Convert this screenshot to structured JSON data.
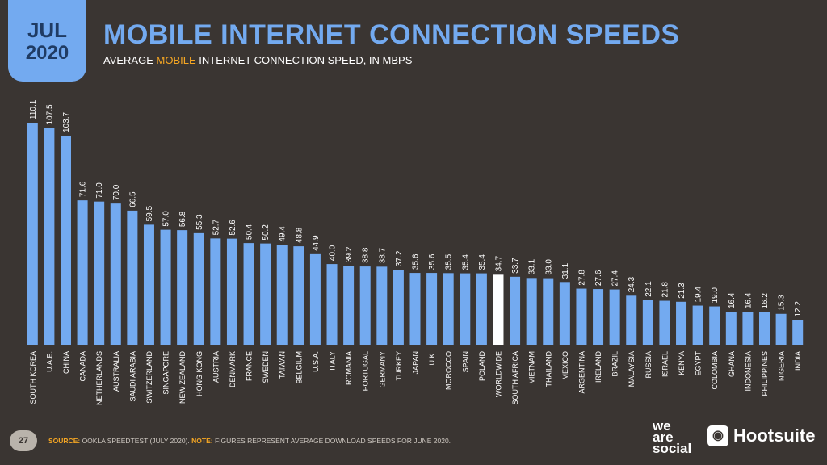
{
  "header": {
    "month": "JUL",
    "year": "2020",
    "title": "MOBILE INTERNET CONNECTION SPEEDS",
    "subtitle_pre": "AVERAGE ",
    "subtitle_hl": "MOBILE",
    "subtitle_post": " INTERNET CONNECTION SPEED, IN MBPS"
  },
  "footer": {
    "page_number": "27",
    "source_label": "SOURCE:",
    "source_text": " OOKLA SPEEDTEST (JULY 2020). ",
    "note_label": "NOTE:",
    "note_text": " FIGURES REPRESENT AVERAGE DOWNLOAD SPEEDS FOR JUNE 2020."
  },
  "logos": {
    "we": "we",
    "are": "are",
    "social": "social",
    "hootsuite": "Hootsuite"
  },
  "colors": {
    "background": "#3a3532",
    "bar": "#73aaf0",
    "highlight_bar": "#ffffff",
    "accent": "#f5a623"
  },
  "chart_data": {
    "type": "bar",
    "title": "MOBILE INTERNET CONNECTION SPEEDS",
    "ylabel": "",
    "xlabel": "",
    "ylim": [
      0,
      110.1
    ],
    "grid": false,
    "highlight": "WORLDWIDE",
    "categories": [
      "SOUTH KOREA",
      "U.A.E.",
      "CHINA",
      "CANADA",
      "NETHERLANDS",
      "AUSTRALIA",
      "SAUDI ARABIA",
      "SWITZERLAND",
      "SINGAPORE",
      "NEW ZEALAND",
      "HONG KONG",
      "AUSTRIA",
      "DENMARK",
      "FRANCE",
      "SWEDEN",
      "TAIWAN",
      "BELGIUM",
      "U.S.A.",
      "ITALY",
      "ROMANIA",
      "PORTUGAL",
      "GERMANY",
      "TURKEY",
      "JAPAN",
      "U.K.",
      "MOROCCO",
      "SPAIN",
      "POLAND",
      "WORLDWIDE",
      "SOUTH AFRICA",
      "VIETNAM",
      "THAILAND",
      "MEXICO",
      "ARGENTINA",
      "IRELAND",
      "BRAZIL",
      "MALAYSIA",
      "RUSSIA",
      "ISRAEL",
      "KENYA",
      "EGYPT",
      "COLOMBIA",
      "GHANA",
      "INDONESIA",
      "PHILIPPINES",
      "NIGERIA",
      "INDIA"
    ],
    "values": [
      110.1,
      107.5,
      103.7,
      71.6,
      71.0,
      70.0,
      66.5,
      59.5,
      57.0,
      56.8,
      55.3,
      52.7,
      52.6,
      50.4,
      50.2,
      49.4,
      48.8,
      44.9,
      40.0,
      39.2,
      38.8,
      38.7,
      37.2,
      35.6,
      35.6,
      35.5,
      35.4,
      35.4,
      34.7,
      33.7,
      33.1,
      33.0,
      31.1,
      27.8,
      27.6,
      27.4,
      24.3,
      22.1,
      21.8,
      21.3,
      19.4,
      19.0,
      16.4,
      16.4,
      16.2,
      15.3,
      12.2
    ],
    "value_labels": [
      "110.1",
      "107.5",
      "103.7",
      "71.6",
      "71.0",
      "70.0",
      "66.5",
      "59.5",
      "57.0",
      "56.8",
      "55.3",
      "52.7",
      "52.6",
      "50.4",
      "50.2",
      "49.4",
      "48.8",
      "44.9",
      "40.0",
      "39.2",
      "38.8",
      "38.7",
      "37.2",
      "35.6",
      "35.6",
      "35.5",
      "35.4",
      "35.4",
      "34.7",
      "33.7",
      "33.1",
      "33.0",
      "31.1",
      "27.8",
      "27.6",
      "27.4",
      "24.3",
      "22.1",
      "21.8",
      "21.3",
      "19.4",
      "19.0",
      "16.4",
      "16.4",
      "16.2",
      "15.3",
      "12.2"
    ]
  }
}
